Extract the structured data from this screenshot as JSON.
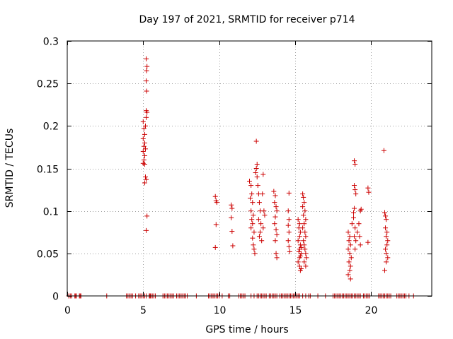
{
  "chart_data": {
    "type": "scatter",
    "title": "Day 197 of 2021, SRMTID for receiver p714",
    "xlabel": "GPS time / hours",
    "ylabel": "SRMTID / TECUs",
    "xlim": [
      0,
      24
    ],
    "ylim": [
      0,
      0.3
    ],
    "x_ticks": [
      0,
      5,
      10,
      15,
      20
    ],
    "y_ticks": [
      0,
      0.05,
      0.1,
      0.15,
      0.2,
      0.25,
      0.3
    ],
    "x_tick_labels": [
      "0",
      "5",
      "10",
      "15",
      "20"
    ],
    "y_tick_labels": [
      "0",
      "0.05",
      "0.1",
      "0.15",
      "0.2",
      "0.25",
      "0.3"
    ],
    "grid": true,
    "marker": "+",
    "color": "#cc0000",
    "series": [
      {
        "name": "SRMTID",
        "points": [
          [
            5.0,
            0.205
          ],
          [
            5.05,
            0.197
          ],
          [
            5.1,
            0.19
          ],
          [
            5.0,
            0.185
          ],
          [
            5.1,
            0.18
          ],
          [
            5.05,
            0.176
          ],
          [
            5.15,
            0.173
          ],
          [
            5.0,
            0.17
          ],
          [
            5.1,
            0.165
          ],
          [
            5.05,
            0.16
          ],
          [
            5.0,
            0.156
          ],
          [
            5.1,
            0.155
          ],
          [
            5.15,
            0.2
          ],
          [
            5.2,
            0.21
          ],
          [
            5.25,
            0.216
          ],
          [
            5.2,
            0.218
          ],
          [
            5.22,
            0.241
          ],
          [
            5.2,
            0.253
          ],
          [
            5.22,
            0.265
          ],
          [
            5.25,
            0.27
          ],
          [
            5.2,
            0.279
          ],
          [
            5.15,
            0.14
          ],
          [
            5.2,
            0.137
          ],
          [
            5.1,
            0.133
          ],
          [
            5.25,
            0.094
          ],
          [
            5.2,
            0.077
          ],
          [
            9.75,
            0.117
          ],
          [
            9.8,
            0.112
          ],
          [
            9.85,
            0.11
          ],
          [
            9.8,
            0.084
          ],
          [
            9.75,
            0.057
          ],
          [
            10.8,
            0.107
          ],
          [
            10.85,
            0.103
          ],
          [
            10.8,
            0.092
          ],
          [
            10.85,
            0.076
          ],
          [
            10.9,
            0.059
          ],
          [
            12.0,
            0.135
          ],
          [
            12.1,
            0.13
          ],
          [
            12.15,
            0.12
          ],
          [
            12.05,
            0.115
          ],
          [
            12.2,
            0.11
          ],
          [
            12.1,
            0.1
          ],
          [
            12.25,
            0.095
          ],
          [
            12.15,
            0.09
          ],
          [
            12.2,
            0.085
          ],
          [
            12.1,
            0.08
          ],
          [
            12.3,
            0.075
          ],
          [
            12.2,
            0.068
          ],
          [
            12.25,
            0.06
          ],
          [
            12.3,
            0.055
          ],
          [
            12.35,
            0.05
          ],
          [
            12.4,
            0.145
          ],
          [
            12.45,
            0.15
          ],
          [
            12.5,
            0.155
          ],
          [
            12.45,
            0.182
          ],
          [
            12.5,
            0.14
          ],
          [
            12.55,
            0.13
          ],
          [
            12.6,
            0.12
          ],
          [
            12.65,
            0.11
          ],
          [
            12.7,
            0.1
          ],
          [
            12.6,
            0.09
          ],
          [
            12.75,
            0.085
          ],
          [
            12.7,
            0.075
          ],
          [
            12.65,
            0.07
          ],
          [
            12.8,
            0.065
          ],
          [
            12.9,
            0.143
          ],
          [
            12.85,
            0.12
          ],
          [
            12.95,
            0.1
          ],
          [
            13.0,
            0.095
          ],
          [
            12.9,
            0.08
          ],
          [
            13.6,
            0.123
          ],
          [
            13.7,
            0.118
          ],
          [
            13.65,
            0.11
          ],
          [
            13.75,
            0.105
          ],
          [
            13.8,
            0.1
          ],
          [
            13.7,
            0.093
          ],
          [
            13.65,
            0.085
          ],
          [
            13.75,
            0.078
          ],
          [
            13.8,
            0.072
          ],
          [
            13.7,
            0.065
          ],
          [
            13.75,
            0.05
          ],
          [
            13.8,
            0.045
          ],
          [
            14.6,
            0.121
          ],
          [
            14.55,
            0.1
          ],
          [
            14.6,
            0.09
          ],
          [
            14.55,
            0.083
          ],
          [
            14.6,
            0.075
          ],
          [
            14.55,
            0.065
          ],
          [
            14.6,
            0.058
          ],
          [
            14.65,
            0.052
          ],
          [
            15.2,
            0.09
          ],
          [
            15.3,
            0.085
          ],
          [
            15.25,
            0.08
          ],
          [
            15.35,
            0.075
          ],
          [
            15.3,
            0.07
          ],
          [
            15.2,
            0.065
          ],
          [
            15.35,
            0.06
          ],
          [
            15.4,
            0.057
          ],
          [
            15.3,
            0.055
          ],
          [
            15.25,
            0.052
          ],
          [
            15.4,
            0.05
          ],
          [
            15.35,
            0.047
          ],
          [
            15.3,
            0.045
          ],
          [
            15.2,
            0.04
          ],
          [
            15.3,
            0.035
          ],
          [
            15.4,
            0.032
          ],
          [
            15.35,
            0.03
          ],
          [
            15.5,
            0.12
          ],
          [
            15.55,
            0.116
          ],
          [
            15.6,
            0.11
          ],
          [
            15.5,
            0.105
          ],
          [
            15.65,
            0.1
          ],
          [
            15.55,
            0.095
          ],
          [
            15.7,
            0.09
          ],
          [
            15.6,
            0.085
          ],
          [
            15.5,
            0.08
          ],
          [
            15.65,
            0.075
          ],
          [
            15.7,
            0.07
          ],
          [
            15.55,
            0.065
          ],
          [
            15.6,
            0.06
          ],
          [
            15.65,
            0.055
          ],
          [
            15.7,
            0.05
          ],
          [
            15.75,
            0.045
          ],
          [
            15.6,
            0.04
          ],
          [
            15.7,
            0.035
          ],
          [
            18.5,
            0.075
          ],
          [
            18.6,
            0.07
          ],
          [
            18.55,
            0.065
          ],
          [
            18.65,
            0.06
          ],
          [
            18.5,
            0.055
          ],
          [
            18.6,
            0.05
          ],
          [
            18.7,
            0.045
          ],
          [
            18.55,
            0.04
          ],
          [
            18.65,
            0.035
          ],
          [
            18.6,
            0.03
          ],
          [
            18.5,
            0.025
          ],
          [
            18.65,
            0.02
          ],
          [
            18.75,
            0.085
          ],
          [
            18.85,
            0.098
          ],
          [
            18.9,
            0.103
          ],
          [
            18.85,
            0.092
          ],
          [
            18.95,
            0.08
          ],
          [
            18.9,
            0.07
          ],
          [
            19.0,
            0.065
          ],
          [
            18.95,
            0.055
          ],
          [
            18.9,
            0.159
          ],
          [
            18.95,
            0.155
          ],
          [
            18.9,
            0.13
          ],
          [
            18.95,
            0.125
          ],
          [
            19.0,
            0.12
          ],
          [
            19.1,
            0.075
          ],
          [
            19.2,
            0.085
          ],
          [
            19.3,
            0.1
          ],
          [
            19.35,
            0.102
          ],
          [
            19.25,
            0.07
          ],
          [
            19.3,
            0.06
          ],
          [
            19.8,
            0.127
          ],
          [
            19.85,
            0.122
          ],
          [
            19.8,
            0.063
          ],
          [
            20.85,
            0.171
          ],
          [
            20.9,
            0.098
          ],
          [
            20.95,
            0.094
          ],
          [
            21.0,
            0.09
          ],
          [
            20.95,
            0.08
          ],
          [
            21.05,
            0.075
          ],
          [
            21.0,
            0.07
          ],
          [
            21.1,
            0.065
          ],
          [
            21.05,
            0.06
          ],
          [
            20.95,
            0.055
          ],
          [
            21.0,
            0.05
          ],
          [
            21.1,
            0.045
          ],
          [
            21.0,
            0.04
          ],
          [
            20.9,
            0.03
          ],
          [
            0.1,
            0
          ],
          [
            0.2,
            0
          ],
          [
            0.3,
            0
          ],
          [
            0.5,
            0
          ],
          [
            0.55,
            0
          ],
          [
            0.6,
            0
          ],
          [
            0.8,
            0
          ],
          [
            0.85,
            0
          ],
          [
            0.9,
            0
          ],
          [
            2.6,
            0
          ],
          [
            3.9,
            0
          ],
          [
            4.0,
            0
          ],
          [
            4.1,
            0
          ],
          [
            4.2,
            0
          ],
          [
            4.3,
            0
          ],
          [
            4.5,
            0
          ],
          [
            4.7,
            0
          ],
          [
            4.8,
            0
          ],
          [
            4.9,
            0
          ],
          [
            5.0,
            0
          ],
          [
            5.1,
            0
          ],
          [
            5.2,
            0
          ],
          [
            5.4,
            0
          ],
          [
            5.45,
            0
          ],
          [
            5.5,
            0
          ],
          [
            5.6,
            0
          ],
          [
            5.7,
            0
          ],
          [
            5.8,
            0
          ],
          [
            6.3,
            0
          ],
          [
            6.4,
            0
          ],
          [
            6.5,
            0
          ],
          [
            6.6,
            0
          ],
          [
            6.7,
            0
          ],
          [
            6.8,
            0
          ],
          [
            6.9,
            0
          ],
          [
            7.0,
            0
          ],
          [
            7.2,
            0
          ],
          [
            7.3,
            0
          ],
          [
            7.4,
            0
          ],
          [
            7.5,
            0
          ],
          [
            7.6,
            0
          ],
          [
            7.7,
            0
          ],
          [
            7.8,
            0
          ],
          [
            7.9,
            0
          ],
          [
            8.5,
            0
          ],
          [
            9.3,
            0
          ],
          [
            9.4,
            0
          ],
          [
            9.5,
            0
          ],
          [
            9.6,
            0
          ],
          [
            9.7,
            0
          ],
          [
            9.8,
            0
          ],
          [
            9.9,
            0
          ],
          [
            10.0,
            0
          ],
          [
            10.2,
            0
          ],
          [
            10.6,
            0
          ],
          [
            10.7,
            0
          ],
          [
            11.3,
            0
          ],
          [
            11.4,
            0
          ],
          [
            11.5,
            0
          ],
          [
            11.6,
            0
          ],
          [
            11.7,
            0
          ],
          [
            12.1,
            0
          ],
          [
            12.3,
            0
          ],
          [
            12.5,
            0
          ],
          [
            12.6,
            0
          ],
          [
            12.7,
            0
          ],
          [
            12.8,
            0
          ],
          [
            12.9,
            0
          ],
          [
            13.0,
            0
          ],
          [
            13.1,
            0
          ],
          [
            13.3,
            0
          ],
          [
            13.4,
            0
          ],
          [
            13.5,
            0
          ],
          [
            13.6,
            0
          ],
          [
            13.7,
            0
          ],
          [
            13.8,
            0
          ],
          [
            14.0,
            0
          ],
          [
            14.1,
            0
          ],
          [
            14.2,
            0
          ],
          [
            14.3,
            0
          ],
          [
            14.4,
            0
          ],
          [
            14.5,
            0
          ],
          [
            14.6,
            0
          ],
          [
            14.7,
            0
          ],
          [
            14.8,
            0
          ],
          [
            14.9,
            0
          ],
          [
            15.0,
            0
          ],
          [
            15.1,
            0
          ],
          [
            15.2,
            0
          ],
          [
            15.3,
            0
          ],
          [
            15.5,
            0
          ],
          [
            15.7,
            0
          ],
          [
            15.9,
            0
          ],
          [
            16.0,
            0
          ],
          [
            16.5,
            0
          ],
          [
            17.0,
            0
          ],
          [
            17.5,
            0
          ],
          [
            17.6,
            0
          ],
          [
            17.7,
            0
          ],
          [
            17.8,
            0
          ],
          [
            17.9,
            0
          ],
          [
            18.0,
            0
          ],
          [
            18.1,
            0
          ],
          [
            18.2,
            0
          ],
          [
            18.3,
            0
          ],
          [
            18.4,
            0
          ],
          [
            18.5,
            0
          ],
          [
            18.6,
            0
          ],
          [
            18.7,
            0
          ],
          [
            18.8,
            0
          ],
          [
            18.9,
            0
          ],
          [
            19.0,
            0
          ],
          [
            19.1,
            0
          ],
          [
            19.2,
            0
          ],
          [
            19.3,
            0
          ],
          [
            19.5,
            0
          ],
          [
            19.6,
            0
          ],
          [
            19.7,
            0
          ],
          [
            19.8,
            0
          ],
          [
            19.9,
            0
          ],
          [
            20.5,
            0
          ],
          [
            20.6,
            0
          ],
          [
            20.7,
            0
          ],
          [
            20.8,
            0
          ],
          [
            20.9,
            0
          ],
          [
            21.0,
            0
          ],
          [
            21.1,
            0
          ],
          [
            21.2,
            0
          ],
          [
            21.3,
            0
          ],
          [
            21.7,
            0
          ],
          [
            21.8,
            0
          ],
          [
            21.9,
            0
          ],
          [
            22.0,
            0
          ],
          [
            22.1,
            0
          ],
          [
            22.2,
            0
          ],
          [
            22.3,
            0
          ],
          [
            22.5,
            0
          ],
          [
            22.8,
            0
          ]
        ]
      }
    ]
  }
}
